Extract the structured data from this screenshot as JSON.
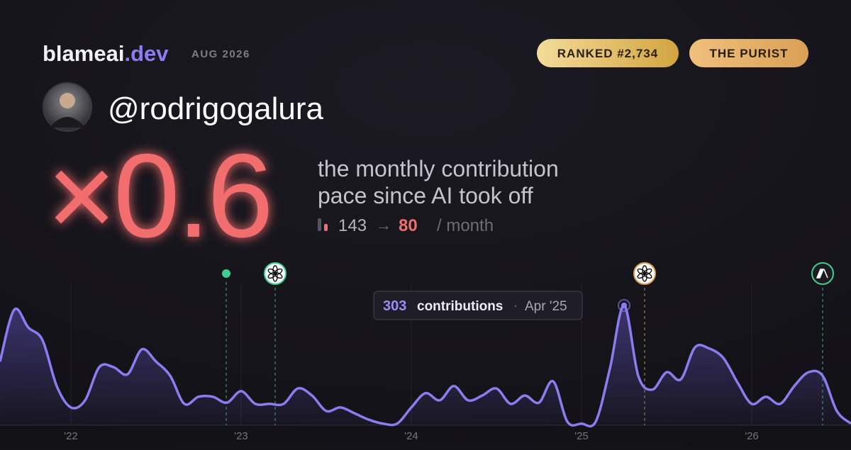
{
  "header": {
    "brand": "blameai",
    "domain": ".dev",
    "date": "AUG 2026",
    "rank_badge": "RANKED #2,734",
    "type_badge": "THE PURIST",
    "username": "@rodrigogalura"
  },
  "headline": {
    "multiplier": "×0.6",
    "description": [
      "the monthly contribution",
      "pace since AI took off"
    ],
    "before": "143",
    "arrow": "→",
    "after": "80",
    "unit": "/ month"
  },
  "chart_data": {
    "type": "area",
    "categories": [
      null,
      null,
      null,
      null,
      null,
      "'22",
      null,
      null,
      null,
      null,
      null,
      null,
      null,
      null,
      null,
      null,
      null,
      "'23",
      null,
      null,
      null,
      null,
      null,
      null,
      null,
      null,
      null,
      null,
      null,
      "'24",
      null,
      null,
      null,
      null,
      null,
      null,
      null,
      null,
      null,
      null,
      null,
      "'25",
      null,
      null,
      null,
      null,
      null,
      null,
      null,
      null,
      null,
      null,
      null,
      "'26",
      null,
      null,
      null,
      null,
      null,
      null,
      null
    ],
    "series": [
      {
        "name": "contributions",
        "color": "#8b7cf0",
        "values": [
          161,
          292,
          247,
          215,
          99,
          45,
          63,
          147,
          147,
          129,
          192,
          161,
          125,
          54,
          72,
          72,
          57,
          86,
          54,
          54,
          54,
          93,
          75,
          36,
          45,
          30,
          14,
          4,
          4,
          45,
          81,
          63,
          99,
          63,
          75,
          93,
          54,
          75,
          57,
          111,
          9,
          4,
          9,
          143,
          303,
          125,
          90,
          134,
          116,
          197,
          194,
          170,
          108,
          54,
          72,
          54,
          99,
          134,
          125,
          36,
          4
        ]
      }
    ],
    "ylim": [
      0,
      303
    ],
    "tooltip": {
      "label": "contributions",
      "separator": "·",
      "date": "Apr '25"
    }
  }
}
